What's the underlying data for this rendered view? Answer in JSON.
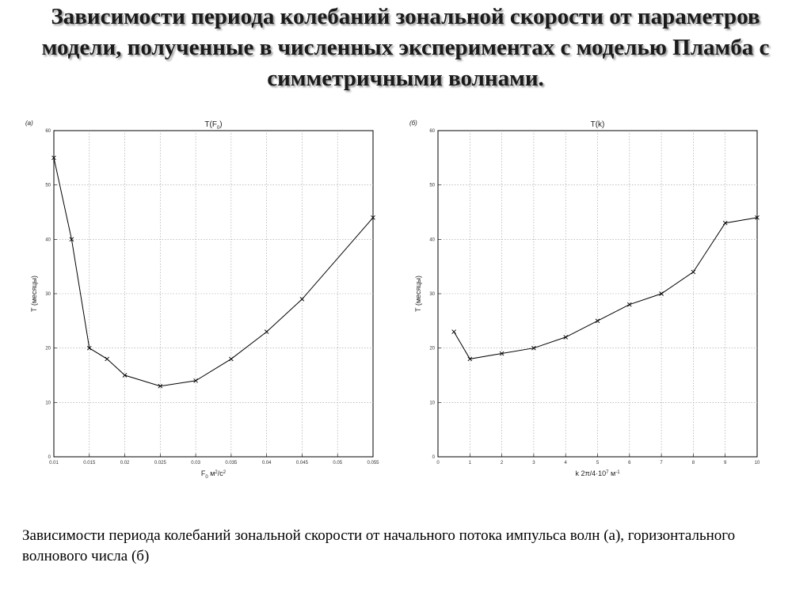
{
  "slide": {
    "title": "Зависимости периода колебаний зональной скорости от параметров модели, полученные в численных экспериментах с моделью Пламба с симметричными волнами.",
    "caption": "Зависимости периода колебаний зональной скорости от начального потока импульса волн (а), горизонтального волнового числа (б)"
  },
  "chart_data": [
    {
      "type": "line",
      "panel_label": "(а)",
      "title": "T(F",
      "title_sub": "0",
      "title_end": ")",
      "ylabel": "T (месяцы)",
      "xlabel_parts": [
        "F",
        "0",
        " м",
        "2",
        "/с",
        "2"
      ],
      "xlim": [
        0.01,
        0.055
      ],
      "ylim": [
        0,
        60
      ],
      "xticks": [
        0.01,
        0.015,
        0.02,
        0.025,
        0.03,
        0.035,
        0.04,
        0.045,
        0.05,
        0.055
      ],
      "xtick_labels": [
        "0.01",
        "0.015",
        "0.02",
        "0.025",
        "0.03",
        "0.035",
        "0.04",
        "0.045",
        "0.05",
        "0.055"
      ],
      "yticks": [
        0,
        10,
        20,
        30,
        40,
        50,
        60
      ],
      "grid": true,
      "marker": "x",
      "line_color": "#000000",
      "x": [
        0.01,
        0.0125,
        0.015,
        0.0175,
        0.02,
        0.025,
        0.03,
        0.035,
        0.04,
        0.045,
        0.055
      ],
      "y": [
        55,
        40,
        20,
        18,
        15,
        13,
        14,
        18,
        23,
        29,
        44
      ]
    },
    {
      "type": "line",
      "panel_label": "(б)",
      "title": "T(k)",
      "ylabel": "T (месяцы)",
      "xlabel_parts": [
        "k  2π/4·10",
        "7",
        " м",
        "-1"
      ],
      "xlim": [
        0,
        10
      ],
      "ylim": [
        0,
        60
      ],
      "xticks": [
        0,
        1,
        2,
        3,
        4,
        5,
        6,
        7,
        8,
        9,
        10
      ],
      "xtick_labels": [
        "0",
        "1",
        "2",
        "3",
        "4",
        "5",
        "6",
        "7",
        "8",
        "9",
        "10"
      ],
      "yticks": [
        0,
        10,
        20,
        30,
        40,
        50,
        60
      ],
      "grid": true,
      "marker": "x",
      "line_color": "#000000",
      "x": [
        0.5,
        1,
        2,
        3,
        4,
        5,
        6,
        7,
        8,
        9,
        10
      ],
      "y": [
        23,
        18,
        19,
        20,
        22,
        25,
        28,
        30,
        34,
        43,
        44
      ]
    }
  ]
}
